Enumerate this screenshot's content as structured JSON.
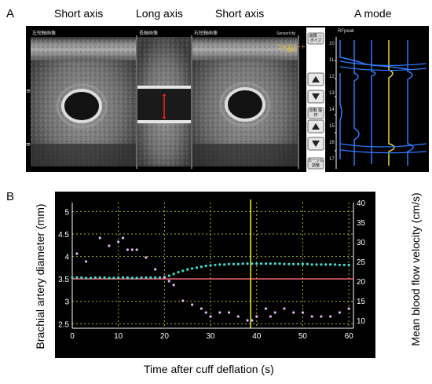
{
  "panel_a": {
    "letter": "A",
    "headers": [
      "Short axis",
      "Long axis",
      "Short axis",
      "A mode"
    ],
    "window_labels": [
      "左短軸画像",
      "長軸画像",
      "右短軸画像"
    ],
    "mode_text": "Sensor/cfg",
    "expert_label": "エキスパート",
    "expert_state": "→ ON",
    "buttons": [
      "画像 ⇔ポイズ",
      "カーソル",
      "反転 操作",
      "カーソル 調整"
    ],
    "rf_label": "RFpeak",
    "depth_scale": [
      "10",
      "11",
      "12",
      "13",
      "14",
      "15",
      "16",
      "17"
    ],
    "left_scale": [
      "10",
      "20"
    ],
    "colors": {
      "marker_red": "#ff2020",
      "trace_blue": "#2f7bff",
      "trace_yellow": "#e8d640"
    }
  },
  "panel_b": {
    "letter": "B",
    "xlabel": "Time after cuff deflation (s)",
    "ylabel_left": "Brachial artery diameter (mm)",
    "ylabel_right": "Mean blood flow velocity (cm/s)"
  },
  "chart_data": {
    "type": "scatter",
    "x_ticks": [
      0,
      10,
      20,
      30,
      40,
      50,
      60
    ],
    "y_left_ticks": [
      2.5,
      3,
      3.5,
      4,
      4.5,
      5
    ],
    "y_right_ticks": [
      10,
      15,
      20,
      25,
      30,
      35,
      40
    ],
    "xlim": [
      0,
      61
    ],
    "ylim_left": [
      2.4,
      5.2
    ],
    "ylim_right": [
      8,
      40
    ],
    "grid": true,
    "baseline_diameter": 3.5,
    "cursor_time": 38.7,
    "colors": {
      "background": "#000000",
      "grid": "#c8e63c",
      "diameter": "#3ee0d4",
      "velocity": "#e4b4f0",
      "baseline": "#ff6a7a",
      "cursor": "#f2ee30",
      "axis": "#ffffff"
    },
    "series": [
      {
        "axis": "left",
        "x": [
          0,
          1,
          2,
          3,
          4,
          5,
          6,
          7,
          8,
          9,
          10,
          11,
          12,
          13,
          14,
          15,
          16,
          17,
          18,
          19,
          20,
          21,
          22,
          23,
          24,
          25,
          26,
          27,
          28,
          29,
          30,
          31,
          32,
          33,
          34,
          35,
          36,
          37,
          38,
          39,
          40,
          41,
          42,
          43,
          44,
          45,
          46,
          47,
          48,
          49,
          50,
          51,
          52,
          53,
          54,
          55,
          56,
          57,
          58,
          59,
          60
        ],
        "values": [
          3.53,
          3.53,
          3.53,
          3.52,
          3.52,
          3.53,
          3.53,
          3.53,
          3.52,
          3.52,
          3.53,
          3.53,
          3.53,
          3.52,
          3.52,
          3.53,
          3.53,
          3.53,
          3.53,
          3.53,
          3.54,
          3.57,
          3.61,
          3.65,
          3.68,
          3.71,
          3.73,
          3.75,
          3.77,
          3.79,
          3.8,
          3.81,
          3.82,
          3.82,
          3.83,
          3.83,
          3.83,
          3.84,
          3.84,
          3.84,
          3.84,
          3.84,
          3.84,
          3.84,
          3.84,
          3.84,
          3.83,
          3.83,
          3.83,
          3.83,
          3.83,
          3.83,
          3.82,
          3.82,
          3.82,
          3.82,
          3.82,
          3.82,
          3.81,
          3.81,
          3.81
        ]
      },
      {
        "axis": "right",
        "x": [
          1,
          3,
          6,
          8,
          10,
          11,
          12,
          13,
          14,
          16,
          18,
          20,
          21,
          22,
          24,
          26,
          28,
          29,
          30,
          32,
          34,
          36,
          38,
          39,
          40,
          42,
          43,
          44,
          46,
          48,
          50,
          52,
          54,
          56,
          58,
          60
        ],
        "values": [
          27,
          25,
          31,
          29,
          30,
          31,
          28,
          28,
          28,
          26,
          23,
          21,
          20,
          19,
          15,
          14,
          13,
          12,
          11,
          12,
          12,
          11,
          10,
          10,
          11,
          13,
          11,
          12,
          13,
          12,
          12,
          11,
          11,
          11,
          12,
          13
        ]
      }
    ]
  }
}
